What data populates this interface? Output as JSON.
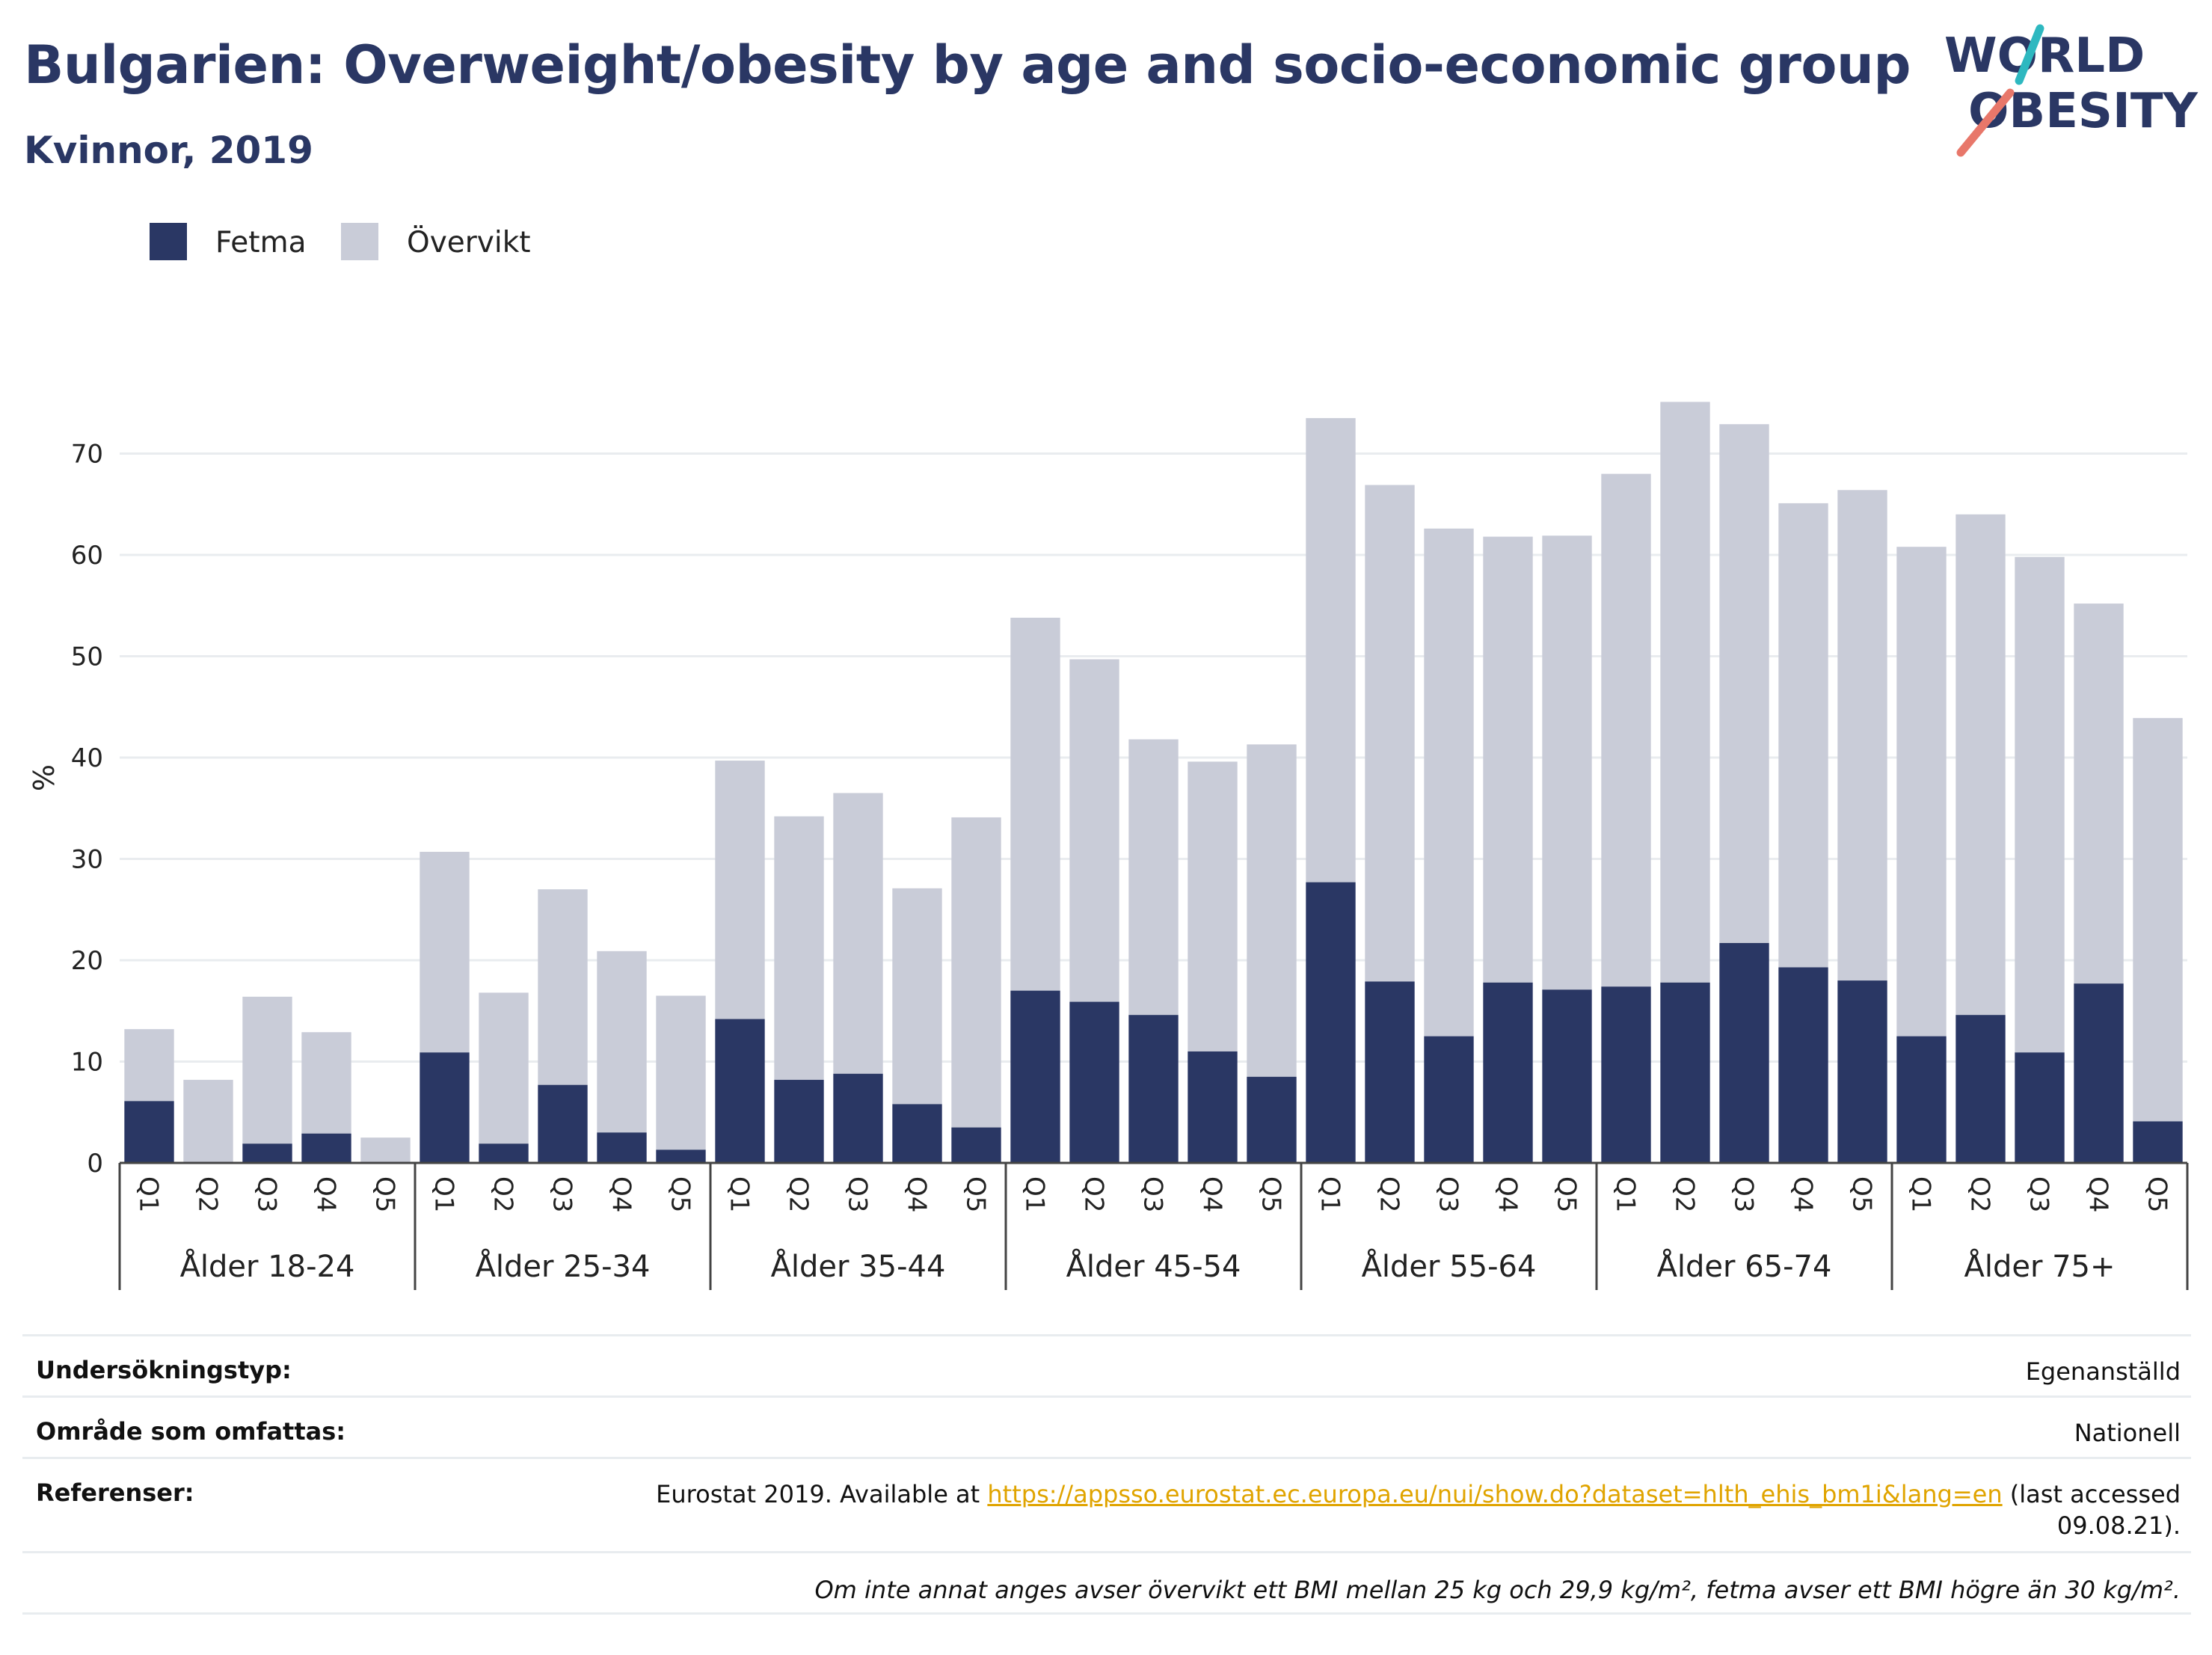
{
  "header": {
    "title": "Bulgarien: Overweight/obesity by age and socio-economic group",
    "subtitle": "Kvinnor, 2019"
  },
  "logo": {
    "line1": "WORLD",
    "line2": "OBESITY"
  },
  "colors": {
    "fetma": "#2a3764",
    "overvikt": "#c9ccd8",
    "title": "#2a3764",
    "link": "#e0a400"
  },
  "legend": [
    {
      "label": "Fetma",
      "color": "#2a3764"
    },
    {
      "label": "Övervikt",
      "color": "#c9ccd8"
    }
  ],
  "chart_data": {
    "type": "bar",
    "stacked": true,
    "ylabel": "%",
    "ylim": [
      0,
      76
    ],
    "yticks": [
      0,
      10,
      20,
      30,
      40,
      50,
      60,
      70
    ],
    "grid": true,
    "legend_position": "top-left",
    "groups": [
      "Ålder 18-24",
      "Ålder 25-34",
      "Ålder 35-44",
      "Ålder 45-54",
      "Ålder 55-64",
      "Ålder 65-74",
      "Ålder 75+"
    ],
    "categories": [
      "Q1",
      "Q2",
      "Q3",
      "Q4",
      "Q5"
    ],
    "series": [
      {
        "name": "Fetma",
        "values": [
          [
            6.1,
            0,
            1.9,
            2.9,
            0
          ],
          [
            10.9,
            1.9,
            7.7,
            3.0,
            1.3
          ],
          [
            14.2,
            8.2,
            8.8,
            5.8,
            3.5
          ],
          [
            17.0,
            15.9,
            14.6,
            11.0,
            8.5
          ],
          [
            27.7,
            17.9,
            12.5,
            17.8,
            17.1
          ],
          [
            17.4,
            17.8,
            21.7,
            19.3,
            18.0
          ],
          [
            12.5,
            14.6,
            10.9,
            17.7,
            4.1
          ]
        ]
      },
      {
        "name": "Övervikt",
        "values": [
          [
            7.1,
            8.2,
            14.5,
            10.0,
            2.5
          ],
          [
            19.8,
            14.9,
            19.3,
            17.9,
            15.2
          ],
          [
            25.5,
            26.0,
            27.7,
            21.3,
            30.6
          ],
          [
            36.8,
            33.8,
            27.2,
            28.6,
            32.8
          ],
          [
            45.8,
            49.0,
            50.1,
            44.0,
            44.8
          ],
          [
            50.6,
            57.3,
            51.2,
            45.8,
            48.4
          ],
          [
            48.3,
            49.4,
            48.9,
            37.5,
            39.8
          ]
        ]
      }
    ]
  },
  "info": {
    "survey_type_label": "Undersökningstyp:",
    "survey_type_value": "Egenanställd",
    "area_label": "Område som omfattas:",
    "area_value": "Nationell",
    "references_label": "Referenser:",
    "references_prefix": "Eurostat 2019. Available at ",
    "references_link": "https://appsso.eurostat.ec.europa.eu/nui/show.do?dataset=hlth_ehis_bm1i&lang=en",
    "references_suffix_1": " (last accessed",
    "references_suffix_2": "09.08.21).",
    "footnote": "Om inte annat anges avser övervikt ett BMI mellan 25 kg och 29,9 kg/m², fetma avser ett BMI högre än 30 kg/m²."
  }
}
